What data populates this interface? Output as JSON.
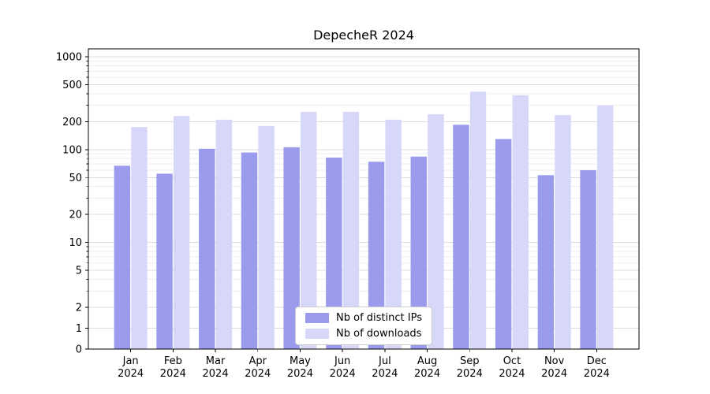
{
  "chart_data": {
    "type": "bar",
    "title": "DepecheR 2024",
    "xlabel": "",
    "ylabel": "",
    "y_scale": "symlog",
    "y_ticks": [
      0,
      1,
      2,
      5,
      10,
      20,
      50,
      100,
      200,
      500,
      1000
    ],
    "ylim": [
      0,
      1100
    ],
    "grid": true,
    "legend_position": "lower center",
    "categories": [
      {
        "month": "Jan",
        "year": "2024"
      },
      {
        "month": "Feb",
        "year": "2024"
      },
      {
        "month": "Mar",
        "year": "2024"
      },
      {
        "month": "Apr",
        "year": "2024"
      },
      {
        "month": "May",
        "year": "2024"
      },
      {
        "month": "Jun",
        "year": "2024"
      },
      {
        "month": "Jul",
        "year": "2024"
      },
      {
        "month": "Aug",
        "year": "2024"
      },
      {
        "month": "Sep",
        "year": "2024"
      },
      {
        "month": "Oct",
        "year": "2024"
      },
      {
        "month": "Nov",
        "year": "2024"
      },
      {
        "month": "Dec",
        "year": "2024"
      }
    ],
    "series": [
      {
        "name": "Nb of distinct IPs",
        "key": "distinct-ips",
        "color": "#9b9bee",
        "values": [
          67,
          55,
          102,
          93,
          106,
          82,
          74,
          84,
          185,
          130,
          53,
          60
        ]
      },
      {
        "name": "Nb of downloads",
        "key": "downloads",
        "color": "#d7d7fa",
        "values": [
          175,
          230,
          210,
          180,
          255,
          255,
          210,
          240,
          420,
          385,
          235,
          300
        ]
      }
    ]
  }
}
